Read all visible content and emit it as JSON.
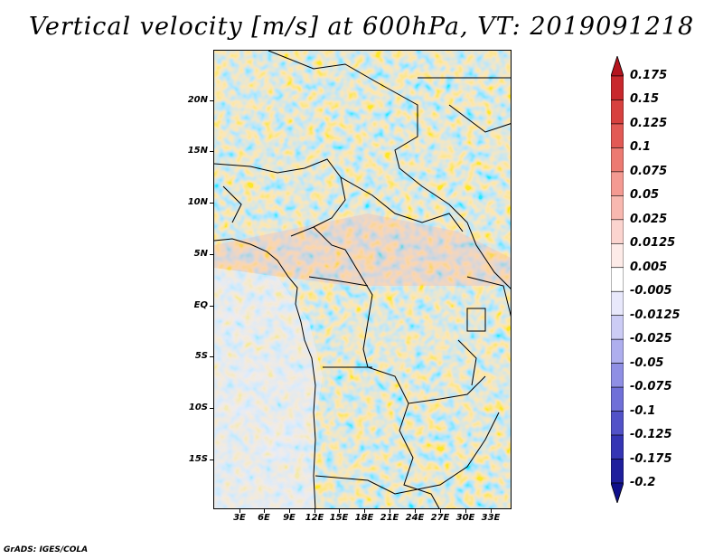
{
  "title": "Vertical velocity [m/s] at 600hPa, VT: 2019091218",
  "credit": "GrADS: IGES/COLA",
  "map": {
    "lat_labels": [
      "20N",
      "15N",
      "10N",
      "5N",
      "EQ",
      "5S",
      "10S",
      "15S"
    ],
    "lon_labels": [
      "3E",
      "6E",
      "9E",
      "12E",
      "15E",
      "18E",
      "21E",
      "24E",
      "27E",
      "30E",
      "33E"
    ]
  },
  "colorbar": {
    "labels": [
      "0.175",
      "0.15",
      "0.125",
      "0.1",
      "0.075",
      "0.05",
      "0.025",
      "0.0125",
      "0.005",
      "-0.005",
      "-0.0125",
      "-0.025",
      "-0.05",
      "-0.075",
      "-0.1",
      "-0.125",
      "-0.175",
      "-0.2"
    ],
    "colors": [
      "#b4141e",
      "#c8282d",
      "#d7413f",
      "#e25a55",
      "#ec7a72",
      "#f49a92",
      "#f8b8b0",
      "#fbd4cf",
      "#fdebe8",
      "#ffffff",
      "#e8e8fb",
      "#ccccf5",
      "#aeaeee",
      "#8f8fe4",
      "#7070d8",
      "#5252c8",
      "#3535b4",
      "#1f1f9c",
      "#10108a"
    ]
  }
}
